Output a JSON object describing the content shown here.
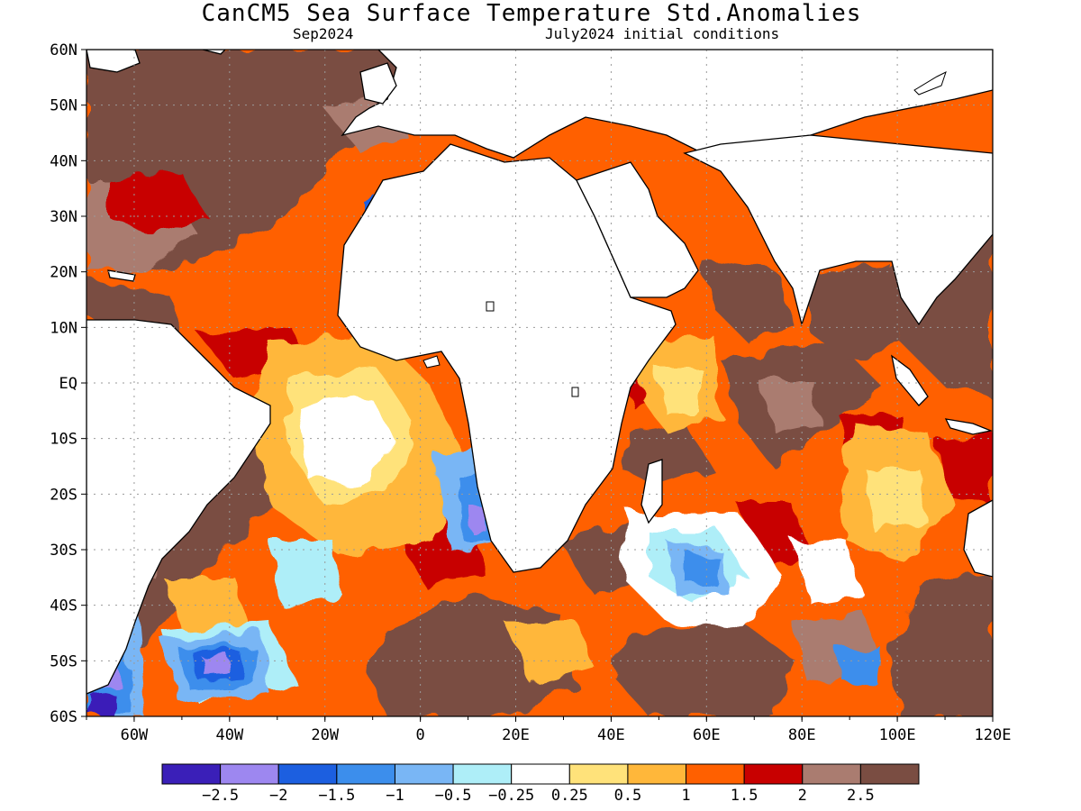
{
  "title": "CanCM5 Sea Surface Temperature Std.Anomalies",
  "subtitle_left": "Sep2024",
  "subtitle_right": "July2024 initial conditions",
  "map": {
    "lon_range": [
      -70,
      120
    ],
    "lat_range": [
      -60,
      60
    ],
    "lat_ticks": [
      "60N",
      "50N",
      "40N",
      "30N",
      "20N",
      "10N",
      "EQ",
      "10S",
      "20S",
      "30S",
      "40S",
      "50S",
      "60S"
    ],
    "lon_ticks": [
      "60W",
      "40W",
      "20W",
      "0",
      "20E",
      "40E",
      "60E",
      "80E",
      "100E",
      "120E"
    ],
    "grid": "dotted"
  },
  "colorbar": {
    "colors": [
      "#3a1fb8",
      "#9d87f0",
      "#1c5fe0",
      "#3c8eec",
      "#79b6f5",
      "#aeeef8",
      "#ffffff",
      "#ffe27a",
      "#ffb73a",
      "#ff6000",
      "#c80000",
      "#aa7c70",
      "#7a4d42"
    ],
    "labels": [
      "-2.5",
      "-2",
      "-1.5",
      "-1",
      "-0.5",
      "-0.25",
      "0.25",
      "0.5",
      "1",
      "1.5",
      "2",
      "2.5"
    ]
  }
}
